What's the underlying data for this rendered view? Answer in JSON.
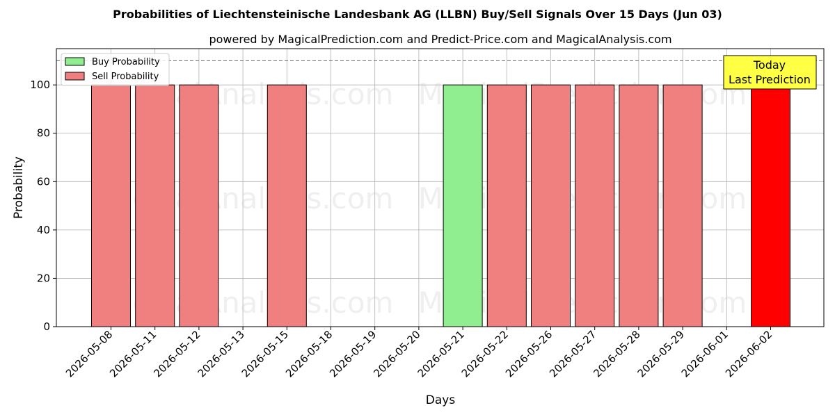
{
  "chart_data": {
    "type": "bar",
    "title": "Probabilities of Liechtensteinische Landesbank AG (LLBN) Buy/Sell Signals Over 15 Days (Jun 03)",
    "subtitle": "powered by MagicalPrediction.com and Predict-Price.com and MagicalAnalysis.com",
    "xlabel": "Days",
    "ylabel": "Probability",
    "ylim": [
      0,
      115
    ],
    "yticks": [
      0,
      20,
      40,
      60,
      80,
      100
    ],
    "grid": true,
    "legend_position": "top-left",
    "reference_line": 110,
    "categories": [
      "2026-05-08",
      "2026-05-11",
      "2026-05-12",
      "2026-05-13",
      "2026-05-15",
      "2026-05-18",
      "2026-05-19",
      "2026-05-20",
      "2026-05-21",
      "2026-05-22",
      "2026-05-26",
      "2026-05-27",
      "2026-05-28",
      "2026-05-29",
      "2026-06-01",
      "2026-06-02"
    ],
    "series": [
      {
        "name": "Buy Probability",
        "color": "#90ee90",
        "values": [
          0,
          0,
          0,
          0,
          0,
          0,
          0,
          0,
          100,
          0,
          0,
          0,
          0,
          0,
          0,
          0
        ]
      },
      {
        "name": "Sell Probability",
        "color": "#f08080",
        "values": [
          100,
          100,
          100,
          0,
          100,
          0,
          0,
          0,
          0,
          100,
          100,
          100,
          100,
          100,
          0,
          100
        ]
      }
    ],
    "highlight": {
      "category": "2026-06-02",
      "color": "#ff0000"
    },
    "annotation": {
      "lines": [
        "Today",
        "Last Prediction"
      ],
      "background": "#ffff44"
    },
    "watermarks": [
      "MagicalAnalysis.com",
      "MagicalPrediction.com"
    ]
  }
}
